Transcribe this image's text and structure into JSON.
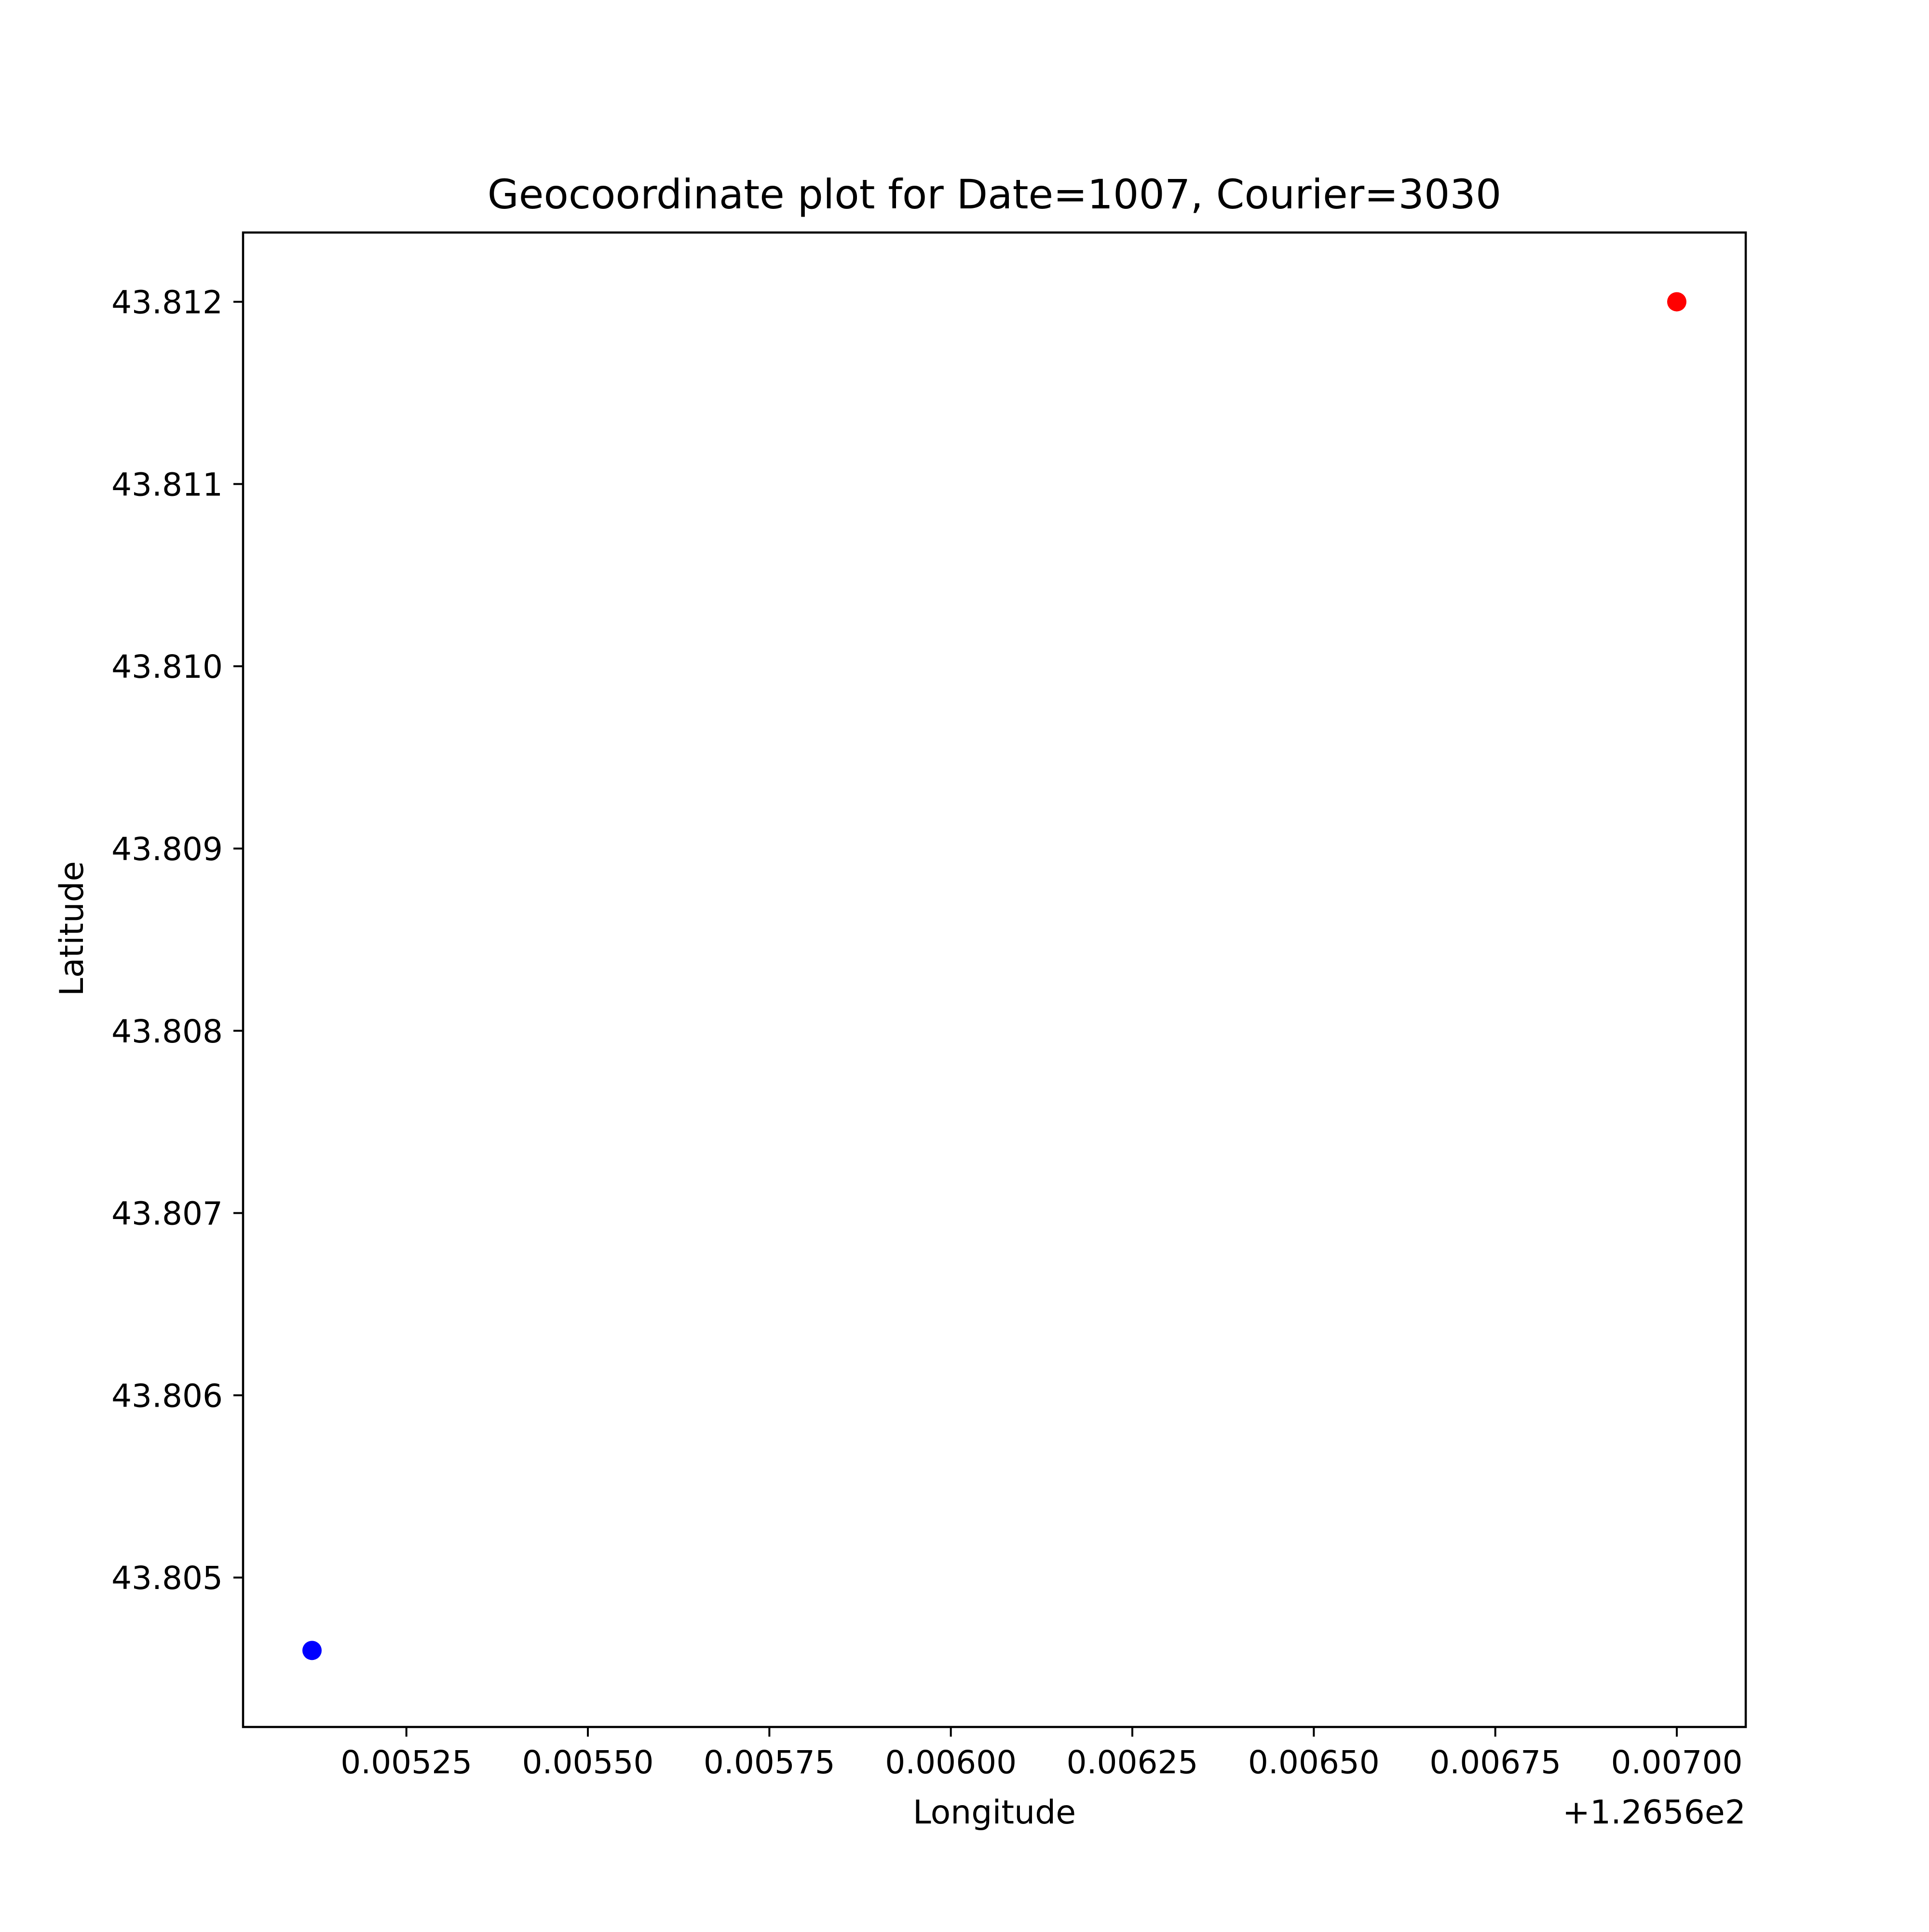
{
  "chart_data": {
    "type": "scatter",
    "title": "Geocoordinate plot for Date=1007, Courier=3030",
    "xlabel": "Longitude",
    "ylabel": "Latitude",
    "x_offset_label": "+1.2656e2",
    "xlim": [
      0.005025,
      0.007095
    ],
    "ylim": [
      43.80418,
      43.81238
    ],
    "x_ticks": [
      0.00525,
      0.0055,
      0.00575,
      0.006,
      0.00625,
      0.0065,
      0.00675,
      0.007
    ],
    "x_tick_labels": [
      "0.00525",
      "0.00550",
      "0.00575",
      "0.00600",
      "0.00625",
      "0.00650",
      "0.00675",
      "0.00700"
    ],
    "y_ticks": [
      43.805,
      43.806,
      43.807,
      43.808,
      43.809,
      43.81,
      43.811,
      43.812
    ],
    "y_tick_labels": [
      "43.805",
      "43.806",
      "43.807",
      "43.808",
      "43.809",
      "43.810",
      "43.811",
      "43.812"
    ],
    "grid": false,
    "points": [
      {
        "x": 0.00512,
        "y": 43.8046,
        "color": "#0000ff"
      },
      {
        "x": 0.007,
        "y": 43.812,
        "color": "#ff0000"
      }
    ]
  }
}
